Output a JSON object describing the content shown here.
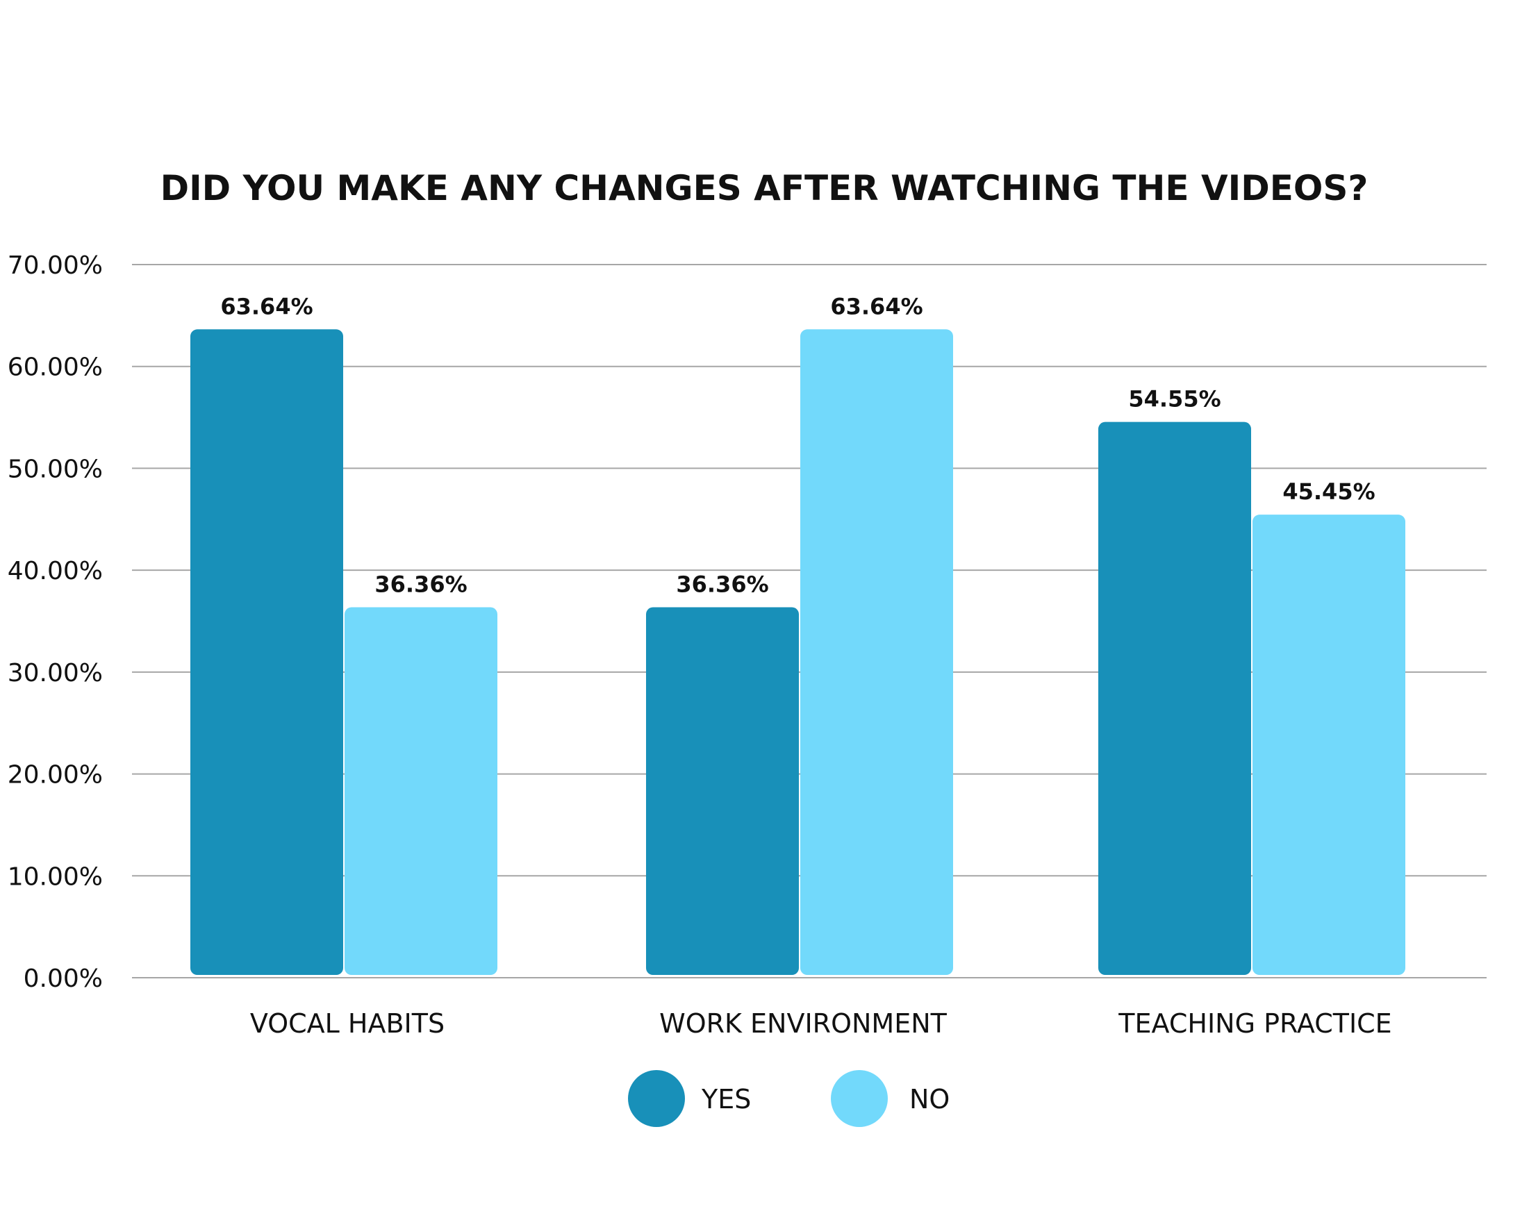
{
  "chart_data": {
    "type": "bar",
    "title": "DID YOU MAKE ANY CHANGES AFTER WATCHING THE VIDEOS?",
    "xlabel": "",
    "ylabel": "",
    "categories": [
      "VOCAL HABITS",
      "WORK ENVIRONMENT",
      "TEACHING PRACTICE"
    ],
    "series": [
      {
        "name": "YES",
        "color": "#1890b9",
        "values": [
          63.64,
          36.36,
          54.55
        ],
        "labels": [
          "63.64%",
          "36.36%",
          "54.55%"
        ]
      },
      {
        "name": "NO",
        "color": "#72d9fb",
        "values": [
          36.36,
          63.64,
          45.45
        ],
        "labels": [
          "36.36%",
          "63.64%",
          "45.45%"
        ]
      }
    ],
    "ylim": [
      0,
      70
    ],
    "yticks": [
      0,
      10,
      20,
      30,
      40,
      50,
      60,
      70
    ],
    "ytick_labels": [
      "0.00%",
      "10.00%",
      "20.00%",
      "30.00%",
      "40.00%",
      "50.00%",
      "60.00%",
      "70.00%"
    ],
    "grid": true,
    "gridline_color": "#a6a6a6",
    "legend_position": "bottom"
  }
}
